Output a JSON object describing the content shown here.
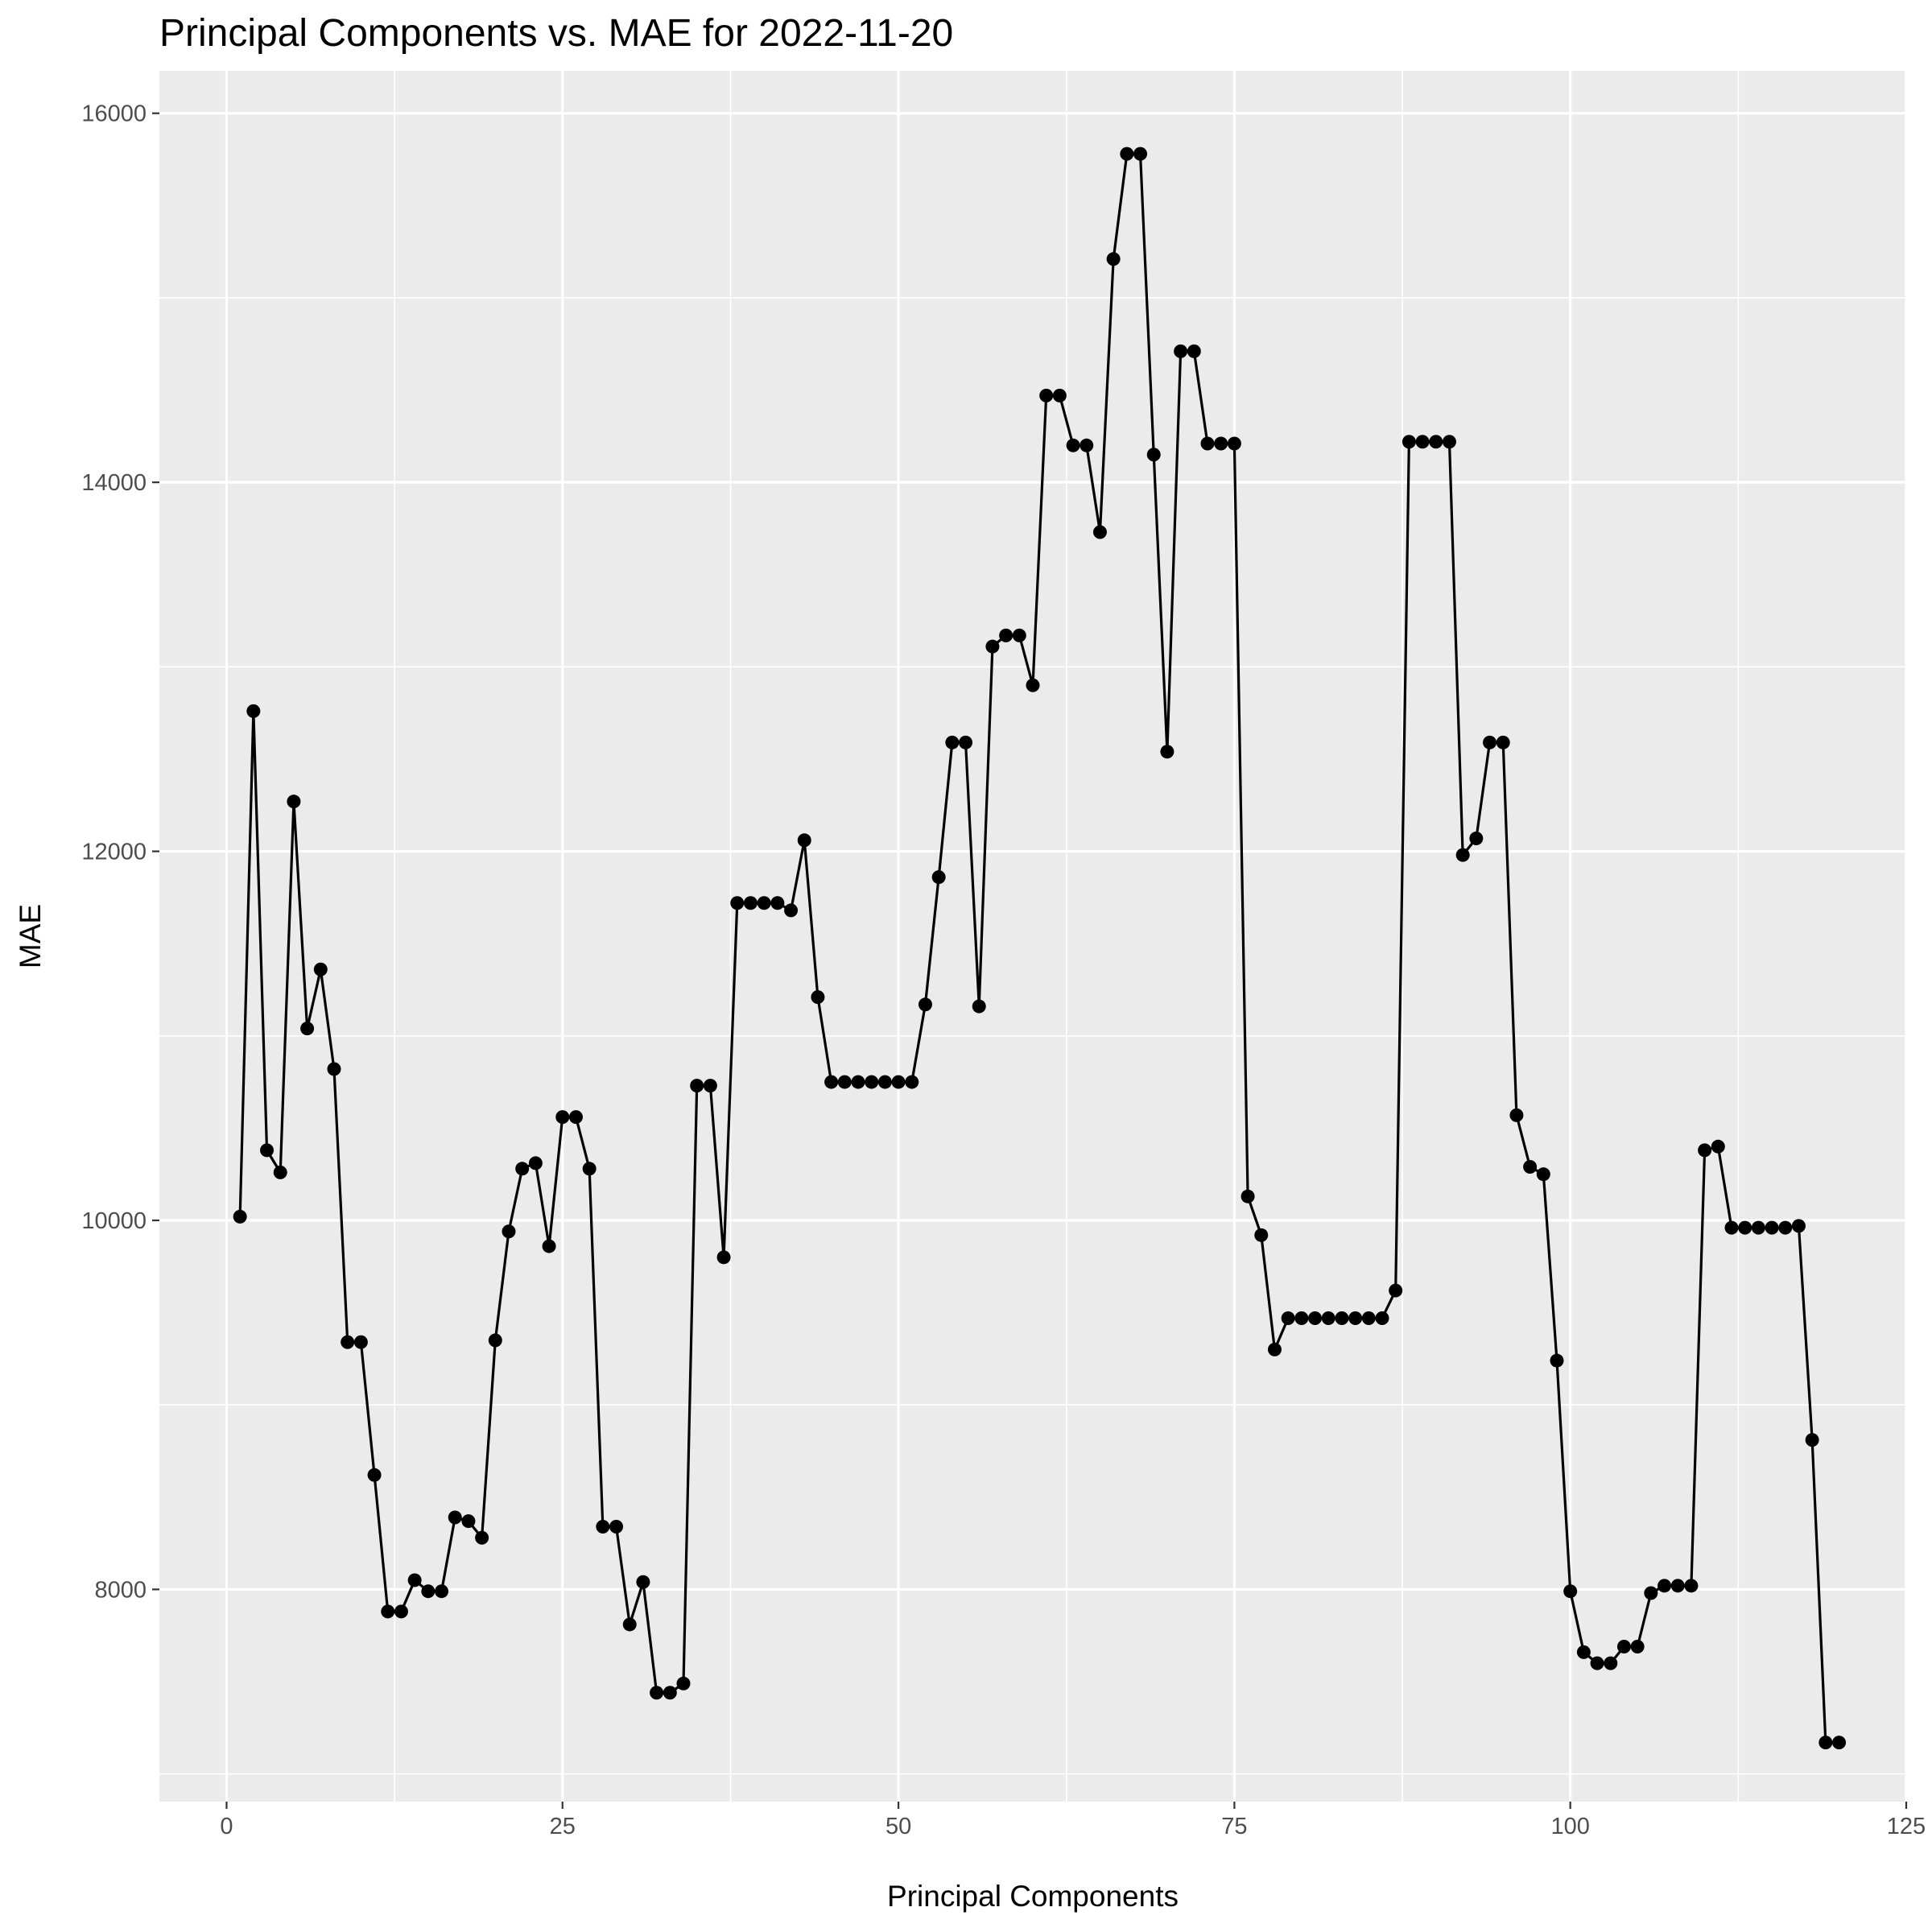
{
  "chart_data": {
    "type": "line",
    "title": "Principal Components vs. MAE for 2022-11-20",
    "xlabel": "Principal Components",
    "ylabel": "MAE",
    "xlim": [
      -5,
      125
    ],
    "ylim": [
      6850,
      16230
    ],
    "x_ticks": [
      0,
      25,
      50,
      75,
      100,
      125
    ],
    "y_ticks": [
      8000,
      10000,
      12000,
      14000,
      16000
    ],
    "grid": true,
    "markers": true,
    "colors": {
      "panel": "#ebebeb",
      "grid": "#ffffff",
      "line": "#000000",
      "tick_text": "#4d4d4d"
    },
    "series": [
      {
        "x": [
          1,
          2,
          3,
          4,
          5,
          6,
          7,
          8,
          9,
          10,
          11,
          12,
          13,
          14,
          15,
          16,
          17,
          18,
          19,
          20,
          21,
          22,
          23,
          24,
          25,
          26,
          27,
          28,
          29,
          30,
          31,
          32,
          33,
          34,
          35,
          36,
          37,
          38,
          39,
          40,
          41,
          42,
          43,
          44,
          45,
          46,
          47,
          48,
          49,
          50,
          51,
          52,
          53,
          54,
          55,
          56,
          57,
          58,
          59,
          60,
          61,
          62,
          63,
          64,
          65,
          66,
          67,
          68,
          69,
          70,
          71,
          72,
          73,
          74,
          75,
          76,
          77,
          78,
          79,
          80,
          81,
          82,
          83,
          84,
          85,
          86,
          87,
          88,
          89,
          90,
          91,
          92,
          93,
          94,
          95,
          96,
          97,
          98,
          99,
          100,
          101,
          102,
          103,
          104,
          105,
          106,
          107,
          108,
          109,
          110,
          111,
          112,
          113,
          114,
          115,
          116,
          117,
          118,
          119,
          120
        ],
        "values": [
          10020,
          12760,
          10380,
          10260,
          12270,
          11040,
          11360,
          10820,
          9340,
          9340,
          8620,
          7880,
          7880,
          8050,
          7990,
          7990,
          8390,
          8370,
          8280,
          9350,
          9940,
          10280,
          10310,
          9860,
          10560,
          10560,
          10280,
          8340,
          8340,
          7810,
          8040,
          7440,
          7440,
          7490,
          10730,
          10730,
          9800,
          11720,
          11720,
          11720,
          11720,
          11680,
          12060,
          11210,
          10750,
          10750,
          10750,
          10750,
          10750,
          10750,
          10750,
          11170,
          11860,
          12590,
          12590,
          11160,
          13110,
          13170,
          13170,
          12900,
          14470,
          14470,
          14200,
          14200,
          13730,
          15210,
          15780,
          15780,
          14150,
          12540,
          14710,
          14710,
          14210,
          14210,
          14210,
          10130,
          9920,
          9300,
          9470,
          9470,
          9470,
          9470,
          9470,
          9470,
          9470,
          9470,
          9620,
          14220,
          14220,
          14220,
          14220,
          11980,
          12070,
          12590,
          12590,
          10570,
          10290,
          10250,
          9240,
          7990,
          7660,
          7600,
          7600,
          7690,
          7690,
          7980,
          8020,
          8020,
          8020,
          10380,
          10400,
          9960,
          9960,
          9960,
          9960,
          9960,
          9970,
          8810,
          7170,
          7170
        ]
      }
    ]
  }
}
